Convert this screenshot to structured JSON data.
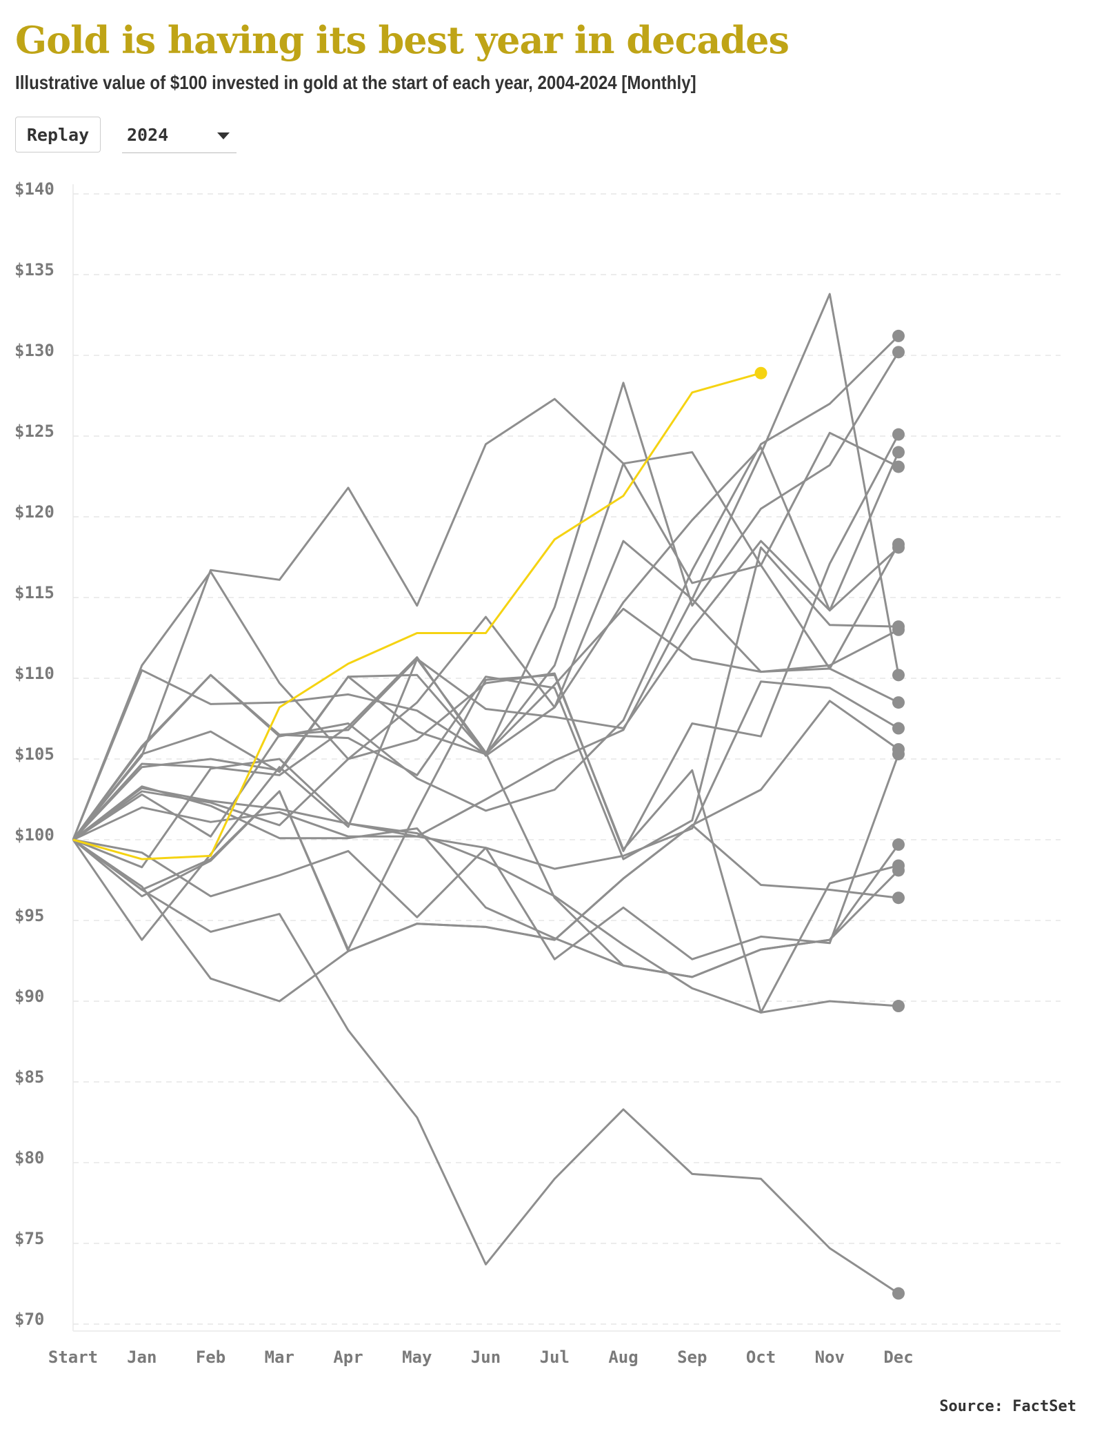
{
  "chart_data": {
    "type": "line",
    "title": "Gold is having its best year in decades",
    "subtitle": "Illustrative value of $100 invested in gold at the start of each year, 2004-2024 [Monthly]",
    "button": "Replay",
    "source": "Source: FactSet",
    "categories": [
      "Start",
      "Jan",
      "Feb",
      "Mar",
      "Apr",
      "May",
      "Jun",
      "Jul",
      "Aug",
      "Sep",
      "Oct",
      "Nov",
      "Dec"
    ],
    "ylim": [
      70,
      140
    ],
    "yticks": [
      {
        "value": 70,
        "label": "$70"
      },
      {
        "value": 75,
        "label": "$75"
      },
      {
        "value": 80,
        "label": "$80"
      },
      {
        "value": 85,
        "label": "$85"
      },
      {
        "value": 90,
        "label": "$90"
      },
      {
        "value": 95,
        "label": "$95"
      },
      {
        "value": 100,
        "label": "$100"
      },
      {
        "value": 105,
        "label": "$105"
      },
      {
        "value": 110,
        "label": "$110"
      },
      {
        "value": 115,
        "label": "$115"
      },
      {
        "value": 120,
        "label": "$120"
      },
      {
        "value": 125,
        "label": "$125"
      },
      {
        "value": 130,
        "label": "$130"
      },
      {
        "value": 135,
        "label": "$135"
      },
      {
        "value": 140,
        "label": "$140"
      }
    ],
    "grid": true,
    "series": [
      {
        "color": "#8e8e8e",
        "values": [
          100,
          105.8,
          110.2,
          106.4,
          107.2,
          103.8,
          101.8,
          103.1,
          107.4,
          116.7,
          124.5,
          127,
          131.2
        ]
      },
      {
        "color": "#8e8e8e",
        "values": [
          100,
          105.3,
          106.7,
          104.2,
          110.1,
          110.2,
          105.3,
          114.4,
          128.3,
          114.5,
          120.5,
          123.2,
          130.2
        ]
      },
      {
        "color": "#8e8e8e",
        "values": [
          100,
          103,
          102.3,
          100.9,
          105,
          106.2,
          109.7,
          110.3,
          99.3,
          107.2,
          106.4,
          117.1,
          125.1
        ]
      },
      {
        "color": "#8e8e8e",
        "values": [
          100,
          104.7,
          104.5,
          104,
          107,
          111.3,
          105.2,
          108.2,
          114.7,
          119.8,
          124.3,
          114.2,
          124
        ]
      },
      {
        "color": "#8e8e8e",
        "values": [
          100,
          110.5,
          108.4,
          108.5,
          109,
          108,
          105.3,
          110.8,
          123.3,
          124,
          117,
          125.2,
          123.1
        ]
      },
      {
        "color": "#8e8e8e",
        "values": [
          100,
          105.2,
          116.7,
          116.1,
          121.8,
          114.5,
          124.5,
          127.3,
          123.3,
          115.9,
          117,
          110.6,
          118.3
        ]
      },
      {
        "color": "#8e8e8e",
        "values": [
          100,
          102.8,
          100.2,
          106.5,
          106.8,
          111.2,
          108.1,
          107.6,
          106.9,
          113.1,
          118.5,
          114.2,
          118.1
        ]
      },
      {
        "color": "#8e8e8e",
        "values": [
          100,
          105.7,
          110.2,
          106.5,
          106.3,
          104,
          110.1,
          109.4,
          98.8,
          101.2,
          118.1,
          113.3,
          113.2
        ]
      },
      {
        "color": "#8e8e8e",
        "values": [
          100,
          102,
          101.1,
          101.7,
          100.2,
          100.2,
          102.5,
          104.9,
          106.8,
          114.9,
          110.4,
          110.8,
          113
        ]
      },
      {
        "color": "#8e8e8e",
        "values": [
          100,
          110.8,
          116.6,
          109.7,
          105,
          108.5,
          113.8,
          108.2,
          118.5,
          114.9,
          123.9,
          133.8,
          110.2
        ]
      },
      {
        "color": "#8e8e8e",
        "values": [
          100,
          104.5,
          105,
          104.3,
          110.1,
          106.7,
          105.3,
          109.6,
          114.3,
          111.2,
          110.4,
          110.6,
          108.5
        ]
      },
      {
        "color": "#8e8e8e",
        "values": [
          100,
          99.2,
          96.5,
          97.8,
          99.3,
          95.2,
          99.5,
          98.2,
          99,
          100.7,
          109.8,
          109.4,
          106.9
        ]
      },
      {
        "color": "#8e8e8e",
        "values": [
          100,
          96.9,
          98.8,
          103,
          93.1,
          94.8,
          94.6,
          93.8,
          97.6,
          100.9,
          103.1,
          108.6,
          105.6
        ]
      },
      {
        "color": "#8e8e8e",
        "values": [
          100,
          98.3,
          104.4,
          105,
          101,
          100.2,
          99.5,
          92.6,
          95.8,
          92.6,
          94,
          93.6,
          105.3
        ]
      },
      {
        "color": "#8e8e8e",
        "values": [
          100,
          103.3,
          102.1,
          100.1,
          100.1,
          100.7,
          95.8,
          93.9,
          92.2,
          91.5,
          93.2,
          93.8,
          99.7
        ]
      },
      {
        "color": "#8e8e8e",
        "values": [
          100,
          96.5,
          98.7,
          103,
          93.2,
          101.8,
          109.9,
          110.2,
          99.4,
          104.3,
          89.3,
          97.3,
          98.4
        ]
      },
      {
        "color": "#8e8e8e",
        "values": [
          100,
          93.8,
          99.1,
          104.5,
          100.8,
          111.2,
          105.4,
          96.4,
          92.2,
          91.5,
          93.2,
          93.8,
          98.1
        ]
      },
      {
        "color": "#8e8e8e",
        "values": [
          100,
          97.1,
          91.4,
          90,
          93.1,
          94.8,
          94.6,
          93.8,
          97.6,
          100.9,
          97.2,
          96.9,
          96.4
        ]
      },
      {
        "color": "#8e8e8e",
        "values": [
          100,
          103.2,
          102.4,
          101.9,
          101,
          100.4,
          98.7,
          96.5,
          93.5,
          90.8,
          89.3,
          90,
          89.7
        ]
      },
      {
        "color": "#8e8e8e",
        "values": [
          100,
          96.9,
          94.3,
          95.4,
          88.2,
          82.8,
          73.7,
          79,
          83.3,
          79.3,
          79,
          74.7,
          71.9
        ]
      },
      {
        "name": "2024",
        "color": "#f5d312",
        "values": [
          100,
          98.8,
          99,
          108.2,
          110.9,
          112.8,
          112.8,
          118.6,
          121.3,
          127.7,
          128.9,
          null,
          null
        ]
      }
    ]
  }
}
